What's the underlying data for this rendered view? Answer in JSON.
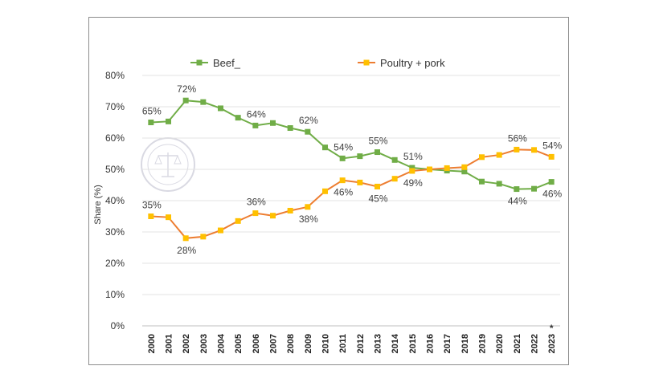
{
  "chart_data": {
    "type": "line",
    "title": "",
    "xlabel": "",
    "ylabel": "Share (%)",
    "ylim": [
      0,
      80
    ],
    "y_ticks": [
      "0%",
      "10%",
      "20%",
      "30%",
      "40%",
      "50%",
      "60%",
      "70%",
      "80%"
    ],
    "grid": "horizontal",
    "legend": "top",
    "x": [
      "2000",
      "2001",
      "2002",
      "2003",
      "2004",
      "2005",
      "2006",
      "2007",
      "2008",
      "2009",
      "2010",
      "2011",
      "2012",
      "2013",
      "2014",
      "2015",
      "2016",
      "2017",
      "2018",
      "2019",
      "2020",
      "2021",
      "2022",
      "2023"
    ],
    "x_note": "*",
    "series": [
      {
        "name": "Beef",
        "color": "#70ad47",
        "values": [
          65,
          65.3,
          72,
          71.5,
          69.5,
          66.5,
          64,
          64.8,
          63.2,
          62,
          57,
          53.5,
          54.2,
          55.5,
          53,
          50.5,
          50,
          49.6,
          49.3,
          46.1,
          45.4,
          43.7,
          43.8,
          46
        ],
        "labels": [
          {
            "index": 0,
            "text": "65%",
            "pos": "above"
          },
          {
            "index": 2,
            "text": "72%",
            "pos": "above"
          },
          {
            "index": 6,
            "text": "64%",
            "pos": "above"
          },
          {
            "index": 9,
            "text": "62%",
            "pos": "above"
          },
          {
            "index": 11,
            "text": "54%",
            "pos": "above"
          },
          {
            "index": 13,
            "text": "55%",
            "pos": "above"
          },
          {
            "index": 15,
            "text": "51%",
            "pos": "above"
          },
          {
            "index": 21,
            "text": "44%",
            "pos": "below"
          },
          {
            "index": 23,
            "text": "46%",
            "pos": "below"
          }
        ]
      },
      {
        "name": "Poultry + pork",
        "color": "#ffc000",
        "line_color": "#ed7d31",
        "values": [
          35,
          34.7,
          28,
          28.5,
          30.5,
          33.5,
          36,
          35.2,
          36.8,
          38,
          43,
          46.5,
          45.8,
          44.5,
          47,
          49.5,
          50,
          50.4,
          50.7,
          53.9,
          54.6,
          56.3,
          56.2,
          54
        ],
        "labels": [
          {
            "index": 0,
            "text": "35%",
            "pos": "above"
          },
          {
            "index": 2,
            "text": "28%",
            "pos": "below"
          },
          {
            "index": 6,
            "text": "36%",
            "pos": "above"
          },
          {
            "index": 9,
            "text": "38%",
            "pos": "below"
          },
          {
            "index": 11,
            "text": "46%",
            "pos": "below"
          },
          {
            "index": 13,
            "text": "45%",
            "pos": "below"
          },
          {
            "index": 15,
            "text": "49%",
            "pos": "below"
          },
          {
            "index": 21,
            "text": "56%",
            "pos": "above"
          },
          {
            "index": 23,
            "text": "54%",
            "pos": "above"
          }
        ]
      }
    ],
    "legend_entries": [
      {
        "label": "Beef_",
        "color": "#70ad47"
      },
      {
        "label": "Poultry + pork",
        "color": "#ffc000",
        "line_color": "#ed7d31"
      }
    ]
  }
}
